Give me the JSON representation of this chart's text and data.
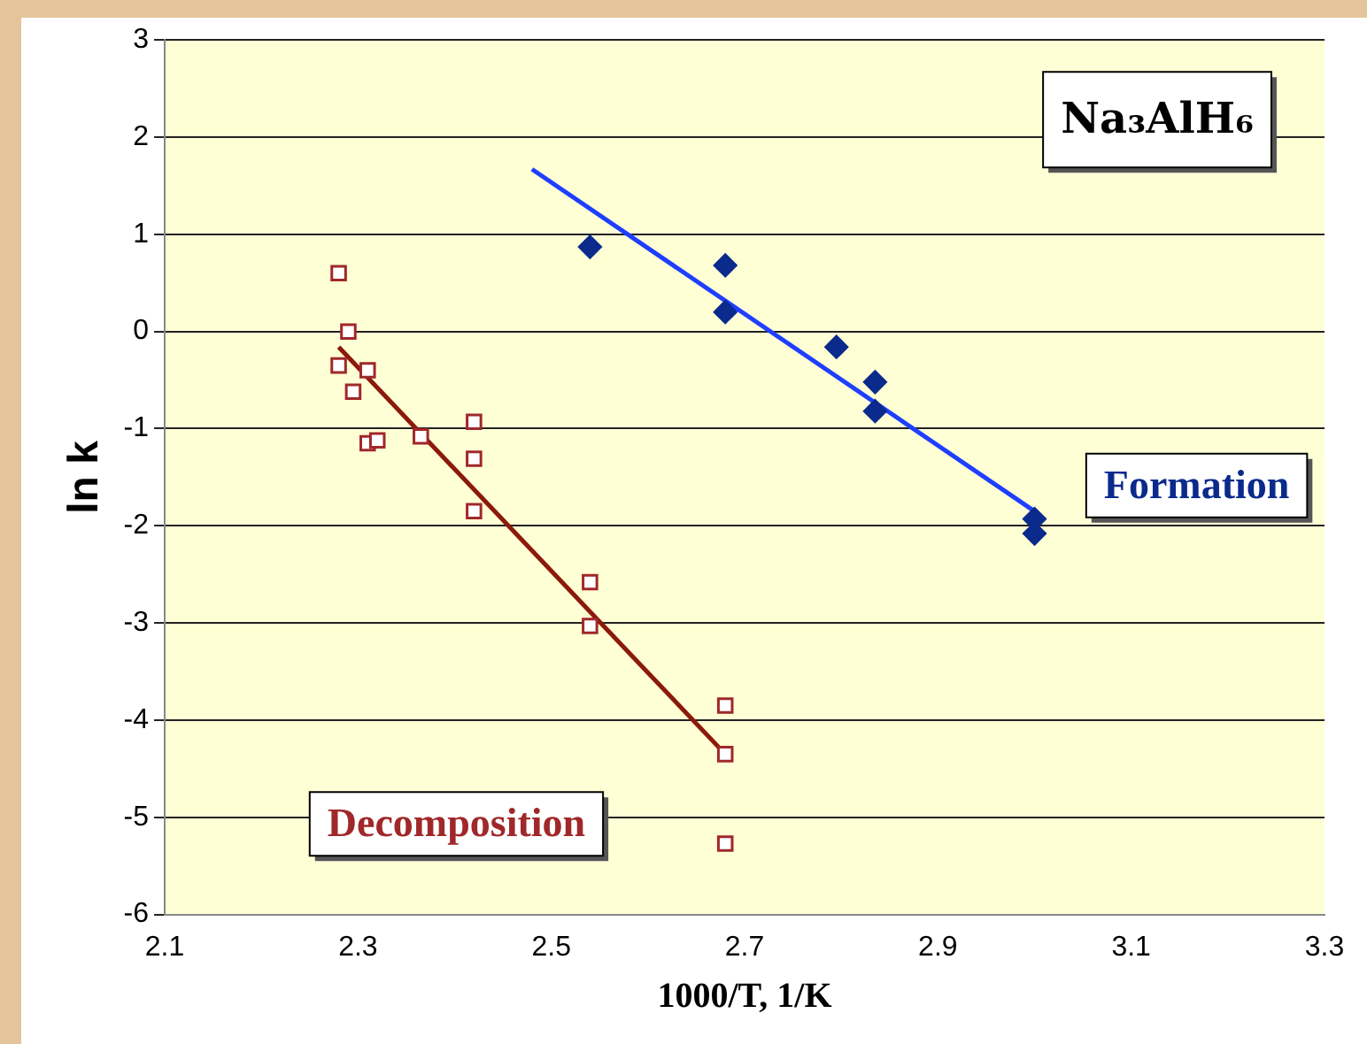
{
  "chart_data": {
    "type": "scatter",
    "xlabel": "1000/T, 1/K",
    "ylabel": "ln k",
    "xlim": [
      2.1,
      3.3
    ],
    "xticks": [
      {
        "value": 2.1,
        "label": "2.1"
      },
      2.3,
      2.5,
      2.7,
      2.9,
      3.1,
      {
        "value": 3.3,
        "label": "3.3"
      }
    ],
    "ylim": [
      -6,
      3
    ],
    "yticks": [
      -6,
      -5,
      -4,
      -3,
      -2,
      -1,
      0,
      1,
      2,
      3
    ],
    "grid": "y",
    "annotations": [
      "Na₃AlH₆"
    ],
    "series": [
      {
        "name": "Formation",
        "type": "scatter",
        "marker": "diamond",
        "color": "#0a2a8c",
        "x": [
          2.54,
          2.68,
          2.68,
          2.795,
          2.835,
          2.835,
          3.0,
          3.0
        ],
        "values": [
          0.87,
          0.68,
          0.2,
          -0.16,
          -0.52,
          -0.82,
          -1.93,
          -2.08
        ]
      },
      {
        "name": "Decomposition",
        "type": "scatter",
        "marker": "square",
        "color": "#a0282a",
        "x": [
          2.28,
          2.29,
          2.28,
          2.31,
          2.295,
          2.31,
          2.32,
          2.365,
          2.42,
          2.42,
          2.42,
          2.54,
          2.54,
          2.68,
          2.68,
          2.68
        ],
        "values": [
          0.6,
          0.0,
          -0.35,
          -0.4,
          -0.62,
          -1.15,
          -1.12,
          -1.08,
          -0.93,
          -1.31,
          -1.85,
          -2.58,
          -3.03,
          -3.85,
          -4.35,
          -5.27
        ]
      },
      {
        "type": "line",
        "marker": "none",
        "color": "#1f3fff",
        "x": [
          2.48,
          3.0
        ],
        "values": [
          1.67,
          -1.85
        ]
      },
      {
        "type": "line",
        "marker": "none",
        "color": "#8b1a0a",
        "x": [
          2.28,
          2.68
        ],
        "values": [
          -0.16,
          -4.35
        ]
      }
    ]
  }
}
